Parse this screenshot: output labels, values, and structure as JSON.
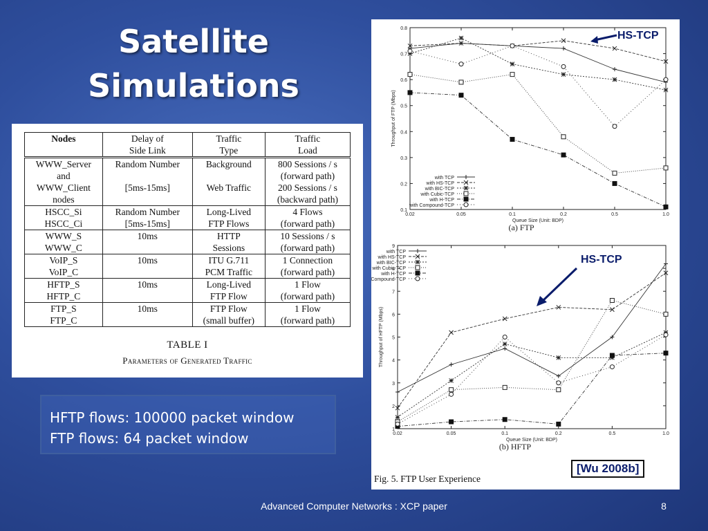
{
  "slide": {
    "title_line1": "Satellite",
    "title_line2": "Simulations",
    "note_line1": "HFTP flows: 100000 packet window",
    "note_line2": "FTP flows: 64 packet window",
    "reference": "[Wu 2008b]",
    "footer": "Advanced Computer Networks :  XCP paper",
    "page_number": "8",
    "callout1": "HS-TCP",
    "callout2": "HS-TCP",
    "fig_caption": "Fig. 5.    FTP User Experience",
    "background_color": "#2f4f9e",
    "callout_color": "#0a1c6b"
  },
  "table": {
    "headers": [
      "Nodes",
      "Delay of\nSide Link",
      "Traffic\nType",
      "Traffic\nLoad"
    ],
    "rows": [
      [
        "WWW_Server\nand\nWWW_Client\nnodes",
        "Random Number\n\n[5ms-15ms]",
        "Background\n\nWeb Traffic",
        "800 Sessions / s\n(forward path)\n200 Sessions / s\n(backward path)"
      ],
      [
        "HSCC_Si\nHSCC_Ci",
        "Random Number\n[5ms-15ms]",
        "Long-Lived\nFTP Flows",
        "4 Flows\n(forward path)"
      ],
      [
        "WWW_S\nWWW_C",
        "10ms",
        "HTTP\nSessions",
        "10 Sessions / s\n(forward path)"
      ],
      [
        "VoIP_S\nVoIP_C",
        "10ms",
        "ITU G.711\nPCM Traffic",
        "1 Connection\n(forward path)"
      ],
      [
        "HFTP_S\nHFTP_C",
        "10ms",
        "Long-Lived\nFTP Flow",
        "1 Flow\n(forward path)"
      ],
      [
        "FTP_S\nFTP_C",
        "10ms",
        "FTP Flow\n(small buffer)",
        "1 Flow\n(forward path)"
      ]
    ],
    "caption_title": "TABLE I",
    "caption_subtitle": "Parameters of Generated Traffic"
  },
  "chart_data": [
    {
      "type": "line",
      "title": "(a) FTP",
      "xlabel": "Queue Size (Unit: BDP)",
      "ylabel": "Throughput of FTP (Mbps)",
      "categories": [
        "0.02",
        "0.05",
        "0.1",
        "0.2",
        "0.5",
        "1.0"
      ],
      "ylim": [
        0.1,
        0.8
      ],
      "yticks": [
        0.1,
        0.2,
        0.3,
        0.4,
        0.5,
        0.6,
        0.7,
        0.8
      ],
      "legend_position": "bottom-left",
      "grid": false,
      "series": [
        {
          "name": "with TCP",
          "marker": "plus",
          "dash": "",
          "values": [
            0.72,
            0.74,
            0.73,
            0.72,
            0.64,
            0.59
          ]
        },
        {
          "name": "with HS-TCP",
          "marker": "x",
          "dash": "4,2",
          "values": [
            0.73,
            0.74,
            0.73,
            0.75,
            0.72,
            0.67
          ]
        },
        {
          "name": "with BIC-TCP",
          "marker": "asterisk",
          "dash": "2,2",
          "values": [
            0.7,
            0.76,
            0.66,
            0.62,
            0.6,
            0.56
          ]
        },
        {
          "name": "with Cubic-TCP",
          "marker": "square-open",
          "dash": "1,2",
          "values": [
            0.62,
            0.59,
            0.62,
            0.38,
            0.24,
            0.26
          ]
        },
        {
          "name": "with H-TCP",
          "marker": "square-filled",
          "dash": "5,2,1,2",
          "values": [
            0.55,
            0.54,
            0.37,
            0.31,
            0.2,
            0.11
          ]
        },
        {
          "name": "with Compound-TCP",
          "marker": "circle-open",
          "dash": "1,3",
          "values": [
            0.71,
            0.66,
            0.73,
            0.65,
            0.42,
            0.6
          ]
        }
      ]
    },
    {
      "type": "line",
      "title": "(b) HFTP",
      "xlabel": "Queue Size (Unit: BDP)",
      "ylabel": "Throughput of HFTP (Mbps)",
      "categories": [
        "0.02",
        "0.05",
        "0.1",
        "0.2",
        "0.5",
        "1.0"
      ],
      "ylim": [
        1,
        9
      ],
      "yticks": [
        1,
        2,
        3,
        4,
        5,
        6,
        7,
        8,
        9
      ],
      "legend_position": "top-left",
      "grid": false,
      "series": [
        {
          "name": "with TCP",
          "marker": "plus",
          "dash": "",
          "values": [
            2.6,
            3.8,
            4.5,
            3.3,
            5.0,
            8.2
          ]
        },
        {
          "name": "with HS-TCP",
          "marker": "x",
          "dash": "4,2",
          "values": [
            1.9,
            5.2,
            5.8,
            6.3,
            6.2,
            7.8
          ]
        },
        {
          "name": "with BIC-TCP",
          "marker": "asterisk",
          "dash": "2,2",
          "values": [
            1.5,
            3.1,
            4.7,
            4.1,
            4.1,
            5.2
          ]
        },
        {
          "name": "with Cubic-TCP",
          "marker": "square-open",
          "dash": "1,2",
          "values": [
            1.3,
            2.7,
            2.8,
            2.7,
            6.6,
            6.0
          ]
        },
        {
          "name": "with H-TCP",
          "marker": "square-filled",
          "dash": "5,2,1,2",
          "values": [
            1.1,
            1.3,
            1.4,
            1.2,
            4.2,
            4.3
          ]
        },
        {
          "name": "with Compound-TCP",
          "marker": "circle-open",
          "dash": "1,3",
          "values": [
            1.2,
            2.5,
            5.0,
            3.0,
            3.7,
            5.1
          ]
        }
      ]
    }
  ]
}
